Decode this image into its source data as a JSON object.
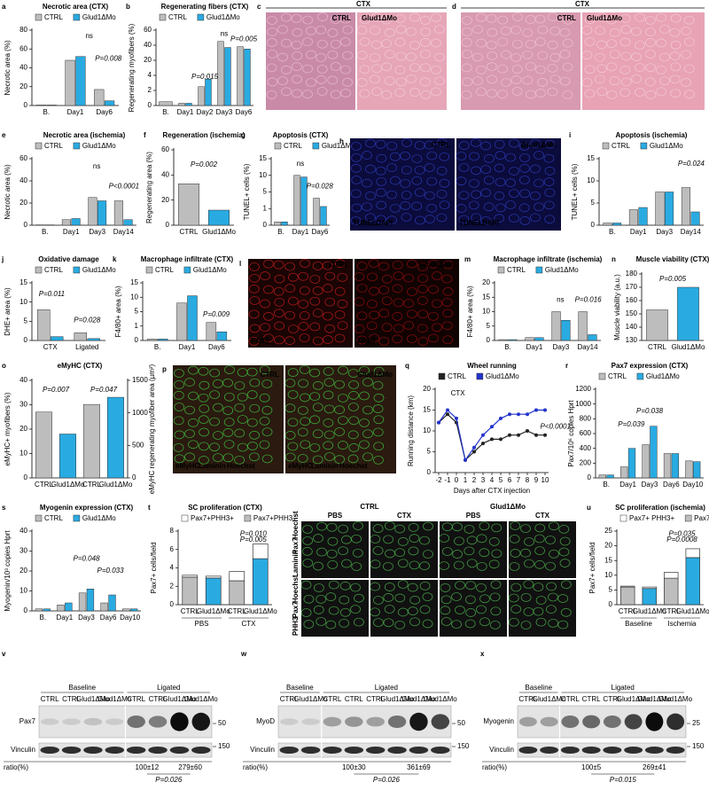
{
  "chart_data": [
    {
      "type": "bar",
      "letter": "a",
      "title": "Necrotic area (CTX)",
      "y_label": "Necrotic area (%)",
      "categories": [
        "B.",
        "Day1",
        "Day6"
      ],
      "series": [
        {
          "name": "CTRL",
          "color": "#bdbdbd",
          "values": [
            0.5,
            48,
            17
          ]
        },
        {
          "name": "Glud1ΔMo",
          "color": "#29abe2",
          "values": [
            0.5,
            52,
            5
          ]
        }
      ],
      "ylim": [
        0,
        80
      ],
      "yticks": [
        0,
        20,
        40,
        60,
        80
      ],
      "annotations": [
        {
          "text": "ns"
        },
        {
          "text": "P=0.008"
        }
      ]
    },
    {
      "type": "bar",
      "letter": "b",
      "title": "Regenerating fibers (CTX)",
      "y_label": "Regenerating myofibers (%)",
      "categories": [
        "B.",
        "Day1",
        "Day2",
        "Day3",
        "Day6"
      ],
      "series": [
        {
          "name": "CTRL",
          "color": "#bdbdbd",
          "values": [
            0.5,
            0.3,
            2.5,
            45,
            38
          ]
        },
        {
          "name": "Glud1ΔMo",
          "color": "#29abe2",
          "values": [
            null,
            0.3,
            3.5,
            37,
            35
          ]
        }
      ],
      "ylim": [
        0,
        60
      ],
      "yticks": [
        0,
        2,
        4,
        20,
        40,
        60
      ],
      "broken_axis": true,
      "annotations": [
        {
          "text": "P=0.015"
        },
        {
          "text": "ns"
        },
        {
          "text": "P=0.005"
        }
      ]
    },
    {
      "type": "bar",
      "letter": "e",
      "title": "Necrotic area (ischemia)",
      "y_label": "Necrotic area (%)",
      "categories": [
        "B.",
        "Day1",
        "Day3",
        "Day14"
      ],
      "series": [
        {
          "name": "CTRL",
          "color": "#bdbdbd",
          "values": [
            0.3,
            5,
            25,
            22
          ]
        },
        {
          "name": "Glud1ΔMo",
          "color": "#29abe2",
          "values": [
            0.3,
            6,
            22,
            5
          ]
        }
      ],
      "ylim": [
        0,
        60
      ],
      "yticks": [
        0,
        20,
        40,
        60
      ],
      "annotations": [
        {
          "text": "ns"
        },
        {
          "text": "P<0.0001"
        }
      ]
    },
    {
      "type": "bar",
      "letter": "f",
      "title": "Regeneration (ischemia)",
      "y_label": "Regenerating area (%)",
      "categories": [
        "CTRL",
        "Glud1ΔMo"
      ],
      "values": [
        33,
        12
      ],
      "colors": [
        "#bdbdbd",
        "#29abe2"
      ],
      "ylim": [
        0,
        60
      ],
      "yticks": [
        0,
        20,
        40,
        60
      ],
      "annotations": [
        {
          "text": "P=0.002"
        }
      ]
    },
    {
      "type": "bar",
      "letter": "g",
      "title": "Apoptosis (CTX)",
      "y_label": "TUNEL+ cells (%)",
      "categories": [
        "B.",
        "Day1",
        "Day6"
      ],
      "series": [
        {
          "name": "CTRL",
          "color": "#bdbdbd",
          "values": [
            0.2,
            10,
            3.5
          ]
        },
        {
          "name": "Glud1ΔMo",
          "color": "#29abe2",
          "values": [
            0.2,
            9.5,
            1.5
          ]
        }
      ],
      "ylim": [
        0,
        15
      ],
      "yticks": [
        0,
        1,
        5,
        10,
        15
      ],
      "broken_axis": true,
      "annotations": [
        {
          "text": "ns"
        },
        {
          "text": "P=0.028"
        }
      ]
    },
    {
      "type": "bar",
      "letter": "i",
      "title": "Apoptosis (ischemia)",
      "y_label": "TUNEL+ cells (%)",
      "categories": [
        "B.",
        "Day1",
        "Day3",
        "Day14"
      ],
      "series": [
        {
          "name": "CTRL",
          "color": "#bdbdbd",
          "values": [
            0.5,
            3.5,
            7.5,
            8.5
          ]
        },
        {
          "name": "Glud1ΔMo",
          "color": "#29abe2",
          "values": [
            0.5,
            4,
            7.5,
            3
          ]
        }
      ],
      "ylim": [
        0,
        15
      ],
      "yticks": [
        0,
        5,
        10,
        15
      ],
      "annotations": [
        {
          "text": "P=0.024"
        }
      ]
    },
    {
      "type": "bar",
      "letter": "j",
      "title": "Oxidative damage",
      "y_label": "DHE+ area (%)",
      "categories": [
        "CTX",
        "Ligated"
      ],
      "series": [
        {
          "name": "CTRL",
          "color": "#bdbdbd",
          "values": [
            8,
            2
          ]
        },
        {
          "name": "Glud1ΔMo",
          "color": "#29abe2",
          "values": [
            1,
            0.5
          ]
        }
      ],
      "ylim": [
        0,
        15
      ],
      "yticks": [
        0,
        5,
        10,
        15
      ],
      "annotations": [
        {
          "text": "P=0.011"
        },
        {
          "text": "P=0.028"
        }
      ]
    },
    {
      "type": "bar",
      "letter": "k",
      "title": "Macrophage infiltrate (CTX)",
      "y_label": "F4/80+ area (%)",
      "categories": [
        "B.",
        "Day1",
        "Day6"
      ],
      "series": [
        {
          "name": "CTRL",
          "color": "#bdbdbd",
          "values": [
            0.1,
            8,
            2
          ]
        },
        {
          "name": "Glud1ΔMo",
          "color": "#29abe2",
          "values": [
            0.1,
            10.5,
            0.6
          ]
        }
      ],
      "ylim": [
        0,
        15
      ],
      "yticks": [
        0,
        1,
        5,
        10,
        15
      ],
      "broken_axis": true,
      "annotations": [
        {
          "text": "P=0.009"
        }
      ]
    },
    {
      "type": "bar",
      "letter": "m",
      "title": "Macrophage infiltrate (ischemia)",
      "y_label": "F4/80+ area (%)",
      "categories": [
        "B.",
        "Day1",
        "Day3",
        "Day14"
      ],
      "series": [
        {
          "name": "CTRL",
          "color": "#bdbdbd",
          "values": [
            0.3,
            1,
            10,
            10
          ]
        },
        {
          "name": "Glud1ΔMo",
          "color": "#29abe2",
          "values": [
            0.3,
            1,
            7,
            2
          ]
        }
      ],
      "ylim": [
        0,
        20
      ],
      "yticks": [
        0,
        5,
        10,
        15,
        20
      ],
      "annotations": [
        {
          "text": "ns"
        },
        {
          "text": "P=0.016"
        }
      ]
    },
    {
      "type": "bar",
      "letter": "n",
      "title": "Muscle viability (CTX)",
      "y_label": "Muscle viability (a.u.)",
      "categories": [
        "CTRL",
        "Glud1ΔMo"
      ],
      "values": [
        153,
        170
      ],
      "colors": [
        "#bdbdbd",
        "#29abe2"
      ],
      "ylim": [
        130,
        180
      ],
      "yticks": [
        130,
        140,
        150,
        160,
        170,
        180
      ],
      "annotations": [
        {
          "text": "P=0.005"
        }
      ]
    },
    {
      "type": "bar",
      "letter": "o",
      "title": "eMyHC (CTX)",
      "y_label": "eMyHC+ myofibers (%)",
      "y2_label": "eMyHC regenerating myofiber area (µm²)",
      "categories": [
        "CTRL",
        "Glud1ΔMo",
        "CTRL",
        "Glud1ΔMo"
      ],
      "series": [
        {
          "colors": [
            "#bdbdbd",
            "#29abe2",
            "#bdbdbd",
            "#29abe2"
          ],
          "values": [
            27,
            18,
            null,
            null
          ]
        },
        {
          "colors": [
            "#bdbdbd",
            "#29abe2",
            "#bdbdbd",
            "#29abe2"
          ],
          "values": [
            null,
            null,
            1130,
            1240
          ],
          "axis": "y2"
        }
      ],
      "ylim": [
        0,
        40
      ],
      "yticks": [
        0,
        10,
        20,
        30,
        40
      ],
      "y2lim": [
        0,
        1500
      ],
      "y2ticks": [
        0,
        500,
        1000,
        1500
      ],
      "annotations": [
        {
          "text": "P=0.007"
        },
        {
          "text": "P=0.047"
        }
      ]
    },
    {
      "type": "line",
      "letter": "q",
      "title": "Wheel running",
      "y_label": "Running distance (km)",
      "x_label": "Days after CTX injection",
      "x": [
        -2,
        -1,
        0,
        1,
        2,
        3,
        4,
        5,
        6,
        7,
        8,
        9,
        10
      ],
      "series": [
        {
          "name": "CTRL",
          "color": "#222222",
          "values": [
            12,
            14,
            12,
            3,
            5,
            7,
            8,
            8,
            9,
            9,
            10,
            9,
            9
          ]
        },
        {
          "name": "Glud1ΔMo",
          "color": "#2233cc",
          "values": [
            12,
            15,
            13,
            3,
            6,
            9,
            11,
            13,
            14,
            14,
            14,
            15,
            15
          ]
        }
      ],
      "xlim": [
        -2,
        10
      ],
      "xticks": [
        -2,
        -1,
        0,
        1,
        2,
        3,
        4,
        5,
        6,
        7,
        8,
        9,
        10
      ],
      "ylim": [
        0,
        20
      ],
      "yticks": [
        0,
        5,
        10,
        15,
        20
      ],
      "annotations": [
        {
          "text": "CTX"
        },
        {
          "text": "P<0.0001"
        }
      ]
    },
    {
      "type": "bar",
      "letter": "r",
      "title": "Pax7 expression (CTX)",
      "y_label": "Pax7/10⁶ copies Hprt",
      "categories": [
        "B.",
        "Day1",
        "Day3",
        "Day6",
        "Day10"
      ],
      "series": [
        {
          "name": "CTRL",
          "color": "#bdbdbd",
          "values": [
            40,
            150,
            450,
            330,
            230
          ]
        },
        {
          "name": "Glud1ΔMo",
          "color": "#29abe2",
          "values": [
            40,
            400,
            700,
            330,
            220
          ]
        }
      ],
      "ylim": [
        0,
        1200
      ],
      "yticks": [
        0,
        200,
        400,
        600,
        800,
        1000,
        1200
      ],
      "annotations": [
        {
          "text": "P=0.039"
        },
        {
          "text": "P=0.038"
        }
      ]
    },
    {
      "type": "bar",
      "letter": "s",
      "title": "Myogenin expression (CTX)",
      "y_label": "Myogenin/10³ copies Hprt",
      "categories": [
        "B.",
        "Day1",
        "Day3",
        "Day6",
        "Day10"
      ],
      "series": [
        {
          "name": "CTRL",
          "color": "#bdbdbd",
          "values": [
            1,
            3,
            9,
            4,
            1
          ]
        },
        {
          "name": "Glud1ΔMo",
          "color": "#29abe2",
          "values": [
            1,
            4,
            11,
            8,
            1
          ]
        }
      ],
      "ylim": [
        0,
        40
      ],
      "yticks": [
        0,
        10,
        20,
        30,
        40
      ],
      "annotations": [
        {
          "text": "P=0.048"
        },
        {
          "text": "P=0.033"
        }
      ]
    },
    {
      "type": "bar",
      "letter": "t",
      "title": "SC proliferation (CTX)",
      "y_label": "Pax7+ cells/field",
      "categories": [
        "CTRL",
        "Glud1ΔMo",
        "CTRL",
        "Glud1ΔMo"
      ],
      "groups": [
        "PBS",
        "CTX"
      ],
      "stacked": true,
      "series": [
        {
          "name": "Pax7+PHH3+",
          "color": "#ffffff",
          "values": [
            0.2,
            0.2,
            1.0,
            1.6
          ]
        },
        {
          "name": "Pax7+PHH3-",
          "color": "#bdbdbd",
          "colors": [
            "#bdbdbd",
            "#29abe2",
            "#bdbdbd",
            "#29abe2"
          ],
          "values": [
            3.0,
            2.9,
            2.6,
            5.0
          ]
        }
      ],
      "ylim": [
        0,
        8
      ],
      "yticks": [
        0,
        2,
        4,
        6,
        8
      ],
      "annotations": [
        {
          "text": "P=0.010"
        },
        {
          "text": "P=0.005",
          "color": "#999999"
        }
      ]
    },
    {
      "type": "bar",
      "letter": "u",
      "title": "SC proliferation (ischemia)",
      "y_label": "Pax7+ cells/field",
      "categories": [
        "CTRL",
        "Glud1ΔMo",
        "CTRL",
        "Glud1ΔMo"
      ],
      "groups": [
        "Baseline",
        "Ischemia"
      ],
      "stacked": true,
      "series": [
        {
          "name": "Pax7+ PHH3+",
          "color": "#ffffff",
          "values": [
            0.3,
            0.5,
            2,
            3
          ]
        },
        {
          "name": "Pax7+ PHH3-",
          "color": "#bdbdbd",
          "colors": [
            "#bdbdbd",
            "#29abe2",
            "#bdbdbd",
            "#29abe2"
          ],
          "values": [
            6,
            5.5,
            9,
            16
          ]
        }
      ],
      "ylim": [
        0,
        25
      ],
      "yticks": [
        0,
        5,
        10,
        15,
        20,
        25
      ],
      "annotations": [
        {
          "text": "P=0.035"
        },
        {
          "text": "P=0.0008",
          "color": "#999999"
        }
      ]
    }
  ],
  "image_panels": [
    {
      "letter": "c",
      "labels": [
        "CTX",
        "CTRL",
        "Glud1ΔMo"
      ]
    },
    {
      "letter": "d",
      "labels": [
        "CTX",
        "CTRL",
        "Glud1ΔMo"
      ]
    },
    {
      "letter": "h",
      "labels": [
        "CTRL",
        "Glud1ΔMo",
        "TUNEL",
        "DAPI",
        "TUNEL",
        "DAPI"
      ]
    },
    {
      "letter": "l",
      "labels": [
        "CTRL",
        "Glud1ΔMo",
        "F4/80",
        "F4/80"
      ]
    },
    {
      "letter": "p",
      "labels": [
        "CTRL",
        "Glud1ΔMo",
        "eMyHC",
        "Laminin",
        "Hoechst",
        "eMyHC",
        "Laminin",
        "Hoechst"
      ]
    },
    {
      "labels": [
        "CTRL",
        "Glud1ΔMo",
        "PBS",
        "CTX",
        "PBS",
        "CTX",
        "Laminin",
        "Pax7",
        "Hoechst",
        "PHH3",
        "Pax7",
        "Hoechst"
      ]
    }
  ],
  "blots": [
    {
      "letter": "v",
      "groups": [
        "Baseline",
        "Ligated"
      ],
      "lanes": [
        "CTRL",
        "CTRL",
        "Glud1ΔMo",
        "Glud1ΔMo",
        "CTRL",
        "CTRL",
        "Glud1ΔMo",
        "Glud1ΔMo"
      ],
      "target": "Pax7",
      "loading": "Vinculin",
      "target_marker": "50",
      "loading_marker": "150",
      "ratio_label": "ratio(%)",
      "ratios": [
        "100±12",
        "279±60"
      ],
      "p_value": "P=0.026"
    },
    {
      "letter": "w",
      "groups": [
        "Baseline",
        "Ligated"
      ],
      "lanes": [
        "CTRL",
        "Glud1ΔMo",
        "CTRL",
        "CTRL",
        "CTRL",
        "Glud1ΔMo",
        "Glud1ΔMo",
        "Glud1ΔMo"
      ],
      "target": "MyoD",
      "loading": "Vinculin",
      "target_marker": "50",
      "loading_marker": "150",
      "ratio_label": "ratio(%)",
      "ratios": [
        "100±30",
        "361±69"
      ],
      "p_value": "P=0.026"
    },
    {
      "letter": "x",
      "groups": [
        "Baseline",
        "Ligated"
      ],
      "lanes": [
        "CTRL",
        "Glud1ΔMo",
        "CTRL",
        "CTRL",
        "CTRL",
        "Glud1ΔMo",
        "Glud1ΔMo",
        "Glud1ΔMo"
      ],
      "target": "Myogenin",
      "loading": "Vinculin",
      "target_marker": "25",
      "loading_marker": "150",
      "ratio_label": "ratio(%)",
      "ratios": [
        "100±5",
        "269±41"
      ],
      "p_value": "P=0.015"
    }
  ]
}
